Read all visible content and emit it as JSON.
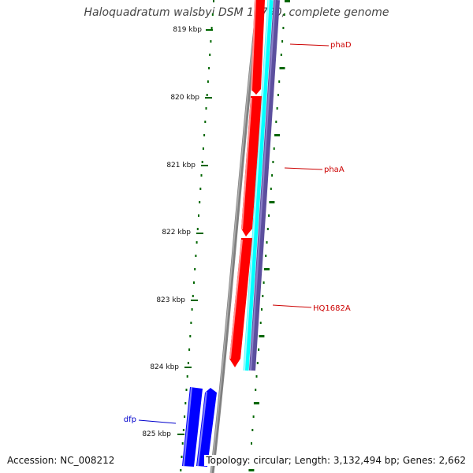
{
  "title": "Haloquadratum walsbyi DSM 16790, complete genome",
  "footer": {
    "accession": "Accession: NC_008212",
    "summary": "Topology: circular; Length: 3,132,494 bp; Genes: 2,662"
  },
  "colors": {
    "backbone": "#808080",
    "forward_cds": "#0000ff",
    "reverse_cds": "#ff0000",
    "gc_skew": "#00ffff",
    "gc_content": "#5c4f9e",
    "ticks": "#006600",
    "label_forward": "#0000cc",
    "label_reverse": "#cc0000"
  },
  "axis": {
    "ticks": [
      {
        "label": "819 kbp"
      },
      {
        "label": "820 kbp"
      },
      {
        "label": "821 kbp"
      },
      {
        "label": "822 kbp"
      },
      {
        "label": "823 kbp"
      },
      {
        "label": "824 kbp"
      },
      {
        "label": "825 kbp"
      }
    ]
  },
  "genes": [
    {
      "name": "phaD",
      "strand": "reverse"
    },
    {
      "name": "phaA",
      "strand": "reverse"
    },
    {
      "name": "HQ1682A",
      "strand": "reverse"
    },
    {
      "name": "dfp",
      "strand": "forward"
    }
  ]
}
